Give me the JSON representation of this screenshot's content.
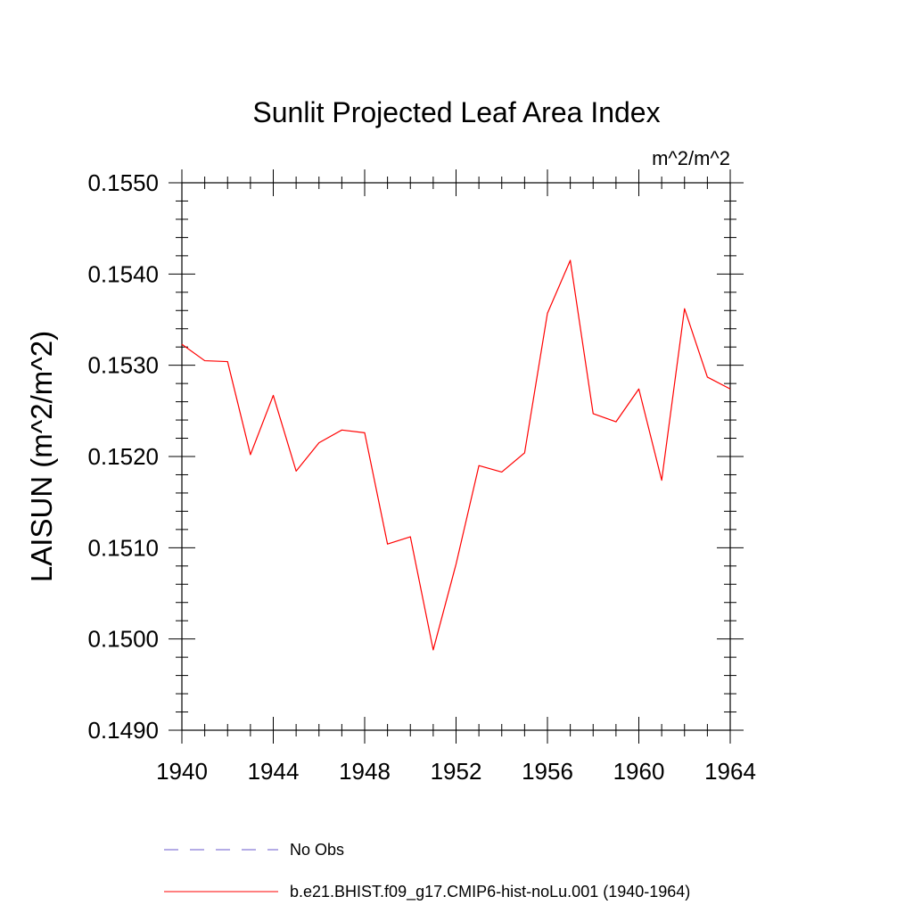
{
  "chart_data": {
    "type": "line",
    "title": "Sunlit Projected Leaf Area Index",
    "units": "m^2/m^2",
    "xlabel": "",
    "ylabel": "LAISUN  (m^2/m^2)",
    "xlim": [
      1940,
      1964
    ],
    "ylim": [
      0.149,
      0.155
    ],
    "x_ticks": [
      "1940",
      "1944",
      "1948",
      "1952",
      "1956",
      "1960",
      "1964"
    ],
    "y_ticks": [
      "0.1490",
      "0.1500",
      "0.1510",
      "0.1520",
      "0.1530",
      "0.1540",
      "0.1550"
    ],
    "grid": false,
    "legend_position": "bottom",
    "series": [
      {
        "name": "No Obs",
        "color": "#6a5acd",
        "dash": "dashed",
        "x": [],
        "values": []
      },
      {
        "name": "b.e21.BHIST.f09_g17.CMIP6-hist-noLu.001 (1940-1964)",
        "color": "#ff0000",
        "dash": "solid",
        "x": [
          1940,
          1941,
          1942,
          1943,
          1944,
          1945,
          1946,
          1947,
          1948,
          1949,
          1950,
          1951,
          1952,
          1953,
          1954,
          1955,
          1956,
          1957,
          1958,
          1959,
          1960,
          1961,
          1962,
          1963,
          1964
        ],
        "values": [
          0.15323,
          0.15305,
          0.15304,
          0.15202,
          0.15267,
          0.15184,
          0.15215,
          0.15229,
          0.15226,
          0.15104,
          0.15112,
          0.14988,
          0.15082,
          0.1519,
          0.15183,
          0.15204,
          0.15357,
          0.15415,
          0.15247,
          0.15238,
          0.15274,
          0.15174,
          0.15362,
          0.15287,
          0.15274
        ]
      }
    ]
  }
}
